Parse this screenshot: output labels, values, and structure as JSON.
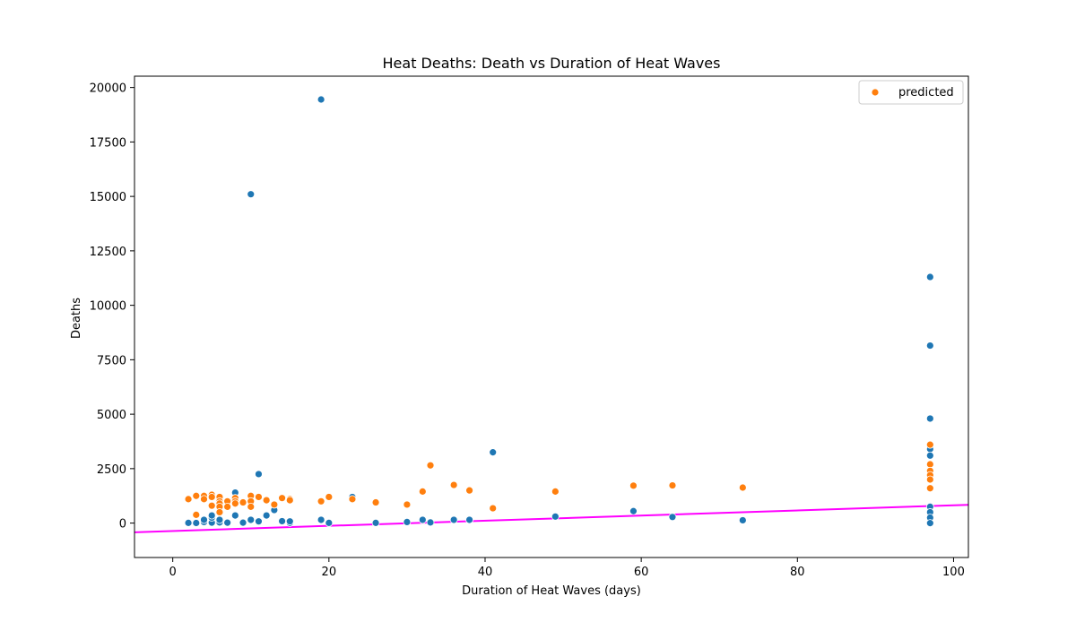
{
  "chart_data": {
    "type": "scatter",
    "title": "Heat Deaths: Death vs Duration of Heat Waves",
    "xlabel": "Duration of Heat Waves (days)",
    "ylabel": "Deaths",
    "xlim": [
      -4.9,
      101.9
    ],
    "ylim": [
      -1580,
      20520
    ],
    "xticks": [
      0,
      20,
      40,
      60,
      80,
      100
    ],
    "xtick_labels": [
      "0",
      "20",
      "40",
      "60",
      "80",
      "100"
    ],
    "yticks": [
      0,
      2500,
      5000,
      7500,
      10000,
      12500,
      15000,
      17500,
      20000
    ],
    "ytick_labels": [
      "0",
      "2500",
      "5000",
      "7500",
      "10000",
      "12500",
      "15000",
      "17500",
      "20000"
    ],
    "grid": false,
    "legend": {
      "position": "upper right",
      "entries": [
        "predicted"
      ]
    },
    "series": [
      {
        "color": "#1f77b4",
        "points": [
          {
            "x": 2,
            "y": 10
          },
          {
            "x": 3,
            "y": 5
          },
          {
            "x": 4,
            "y": 50
          },
          {
            "x": 4,
            "y": 150
          },
          {
            "x": 5,
            "y": 20
          },
          {
            "x": 5,
            "y": 250
          },
          {
            "x": 5,
            "y": 350
          },
          {
            "x": 6,
            "y": 30
          },
          {
            "x": 6,
            "y": 150
          },
          {
            "x": 6,
            "y": 1200
          },
          {
            "x": 7,
            "y": 20
          },
          {
            "x": 8,
            "y": 350
          },
          {
            "x": 8,
            "y": 1400
          },
          {
            "x": 9,
            "y": 20
          },
          {
            "x": 10,
            "y": 150
          },
          {
            "x": 10,
            "y": 15100
          },
          {
            "x": 11,
            "y": 80
          },
          {
            "x": 11,
            "y": 2250
          },
          {
            "x": 12,
            "y": 350
          },
          {
            "x": 13,
            "y": 600
          },
          {
            "x": 14,
            "y": 90
          },
          {
            "x": 15,
            "y": 10
          },
          {
            "x": 15,
            "y": 80
          },
          {
            "x": 19,
            "y": 150
          },
          {
            "x": 19,
            "y": 19450
          },
          {
            "x": 20,
            "y": 10
          },
          {
            "x": 23,
            "y": 1200
          },
          {
            "x": 26,
            "y": 10
          },
          {
            "x": 30,
            "y": 50
          },
          {
            "x": 32,
            "y": 150
          },
          {
            "x": 33,
            "y": 30
          },
          {
            "x": 36,
            "y": 150
          },
          {
            "x": 38,
            "y": 150
          },
          {
            "x": 41,
            "y": 3250
          },
          {
            "x": 49,
            "y": 300
          },
          {
            "x": 59,
            "y": 550
          },
          {
            "x": 64,
            "y": 280
          },
          {
            "x": 73,
            "y": 130
          },
          {
            "x": 97,
            "y": 11300
          },
          {
            "x": 97,
            "y": 8150
          },
          {
            "x": 97,
            "y": 4800
          },
          {
            "x": 97,
            "y": 3400
          },
          {
            "x": 97,
            "y": 3100
          },
          {
            "x": 97,
            "y": 750
          },
          {
            "x": 97,
            "y": 500
          },
          {
            "x": 97,
            "y": 250
          },
          {
            "x": 97,
            "y": 0
          }
        ]
      },
      {
        "name": "predicted",
        "color": "#ff7f0e",
        "points": [
          {
            "x": 2,
            "y": 1100
          },
          {
            "x": 3,
            "y": 1250
          },
          {
            "x": 3,
            "y": 380
          },
          {
            "x": 4,
            "y": 1250
          },
          {
            "x": 4,
            "y": 1100
          },
          {
            "x": 5,
            "y": 1300
          },
          {
            "x": 5,
            "y": 1200
          },
          {
            "x": 5,
            "y": 800
          },
          {
            "x": 6,
            "y": 1200
          },
          {
            "x": 6,
            "y": 1000
          },
          {
            "x": 6,
            "y": 900
          },
          {
            "x": 6,
            "y": 750
          },
          {
            "x": 6,
            "y": 500
          },
          {
            "x": 7,
            "y": 1000
          },
          {
            "x": 7,
            "y": 750
          },
          {
            "x": 8,
            "y": 1150
          },
          {
            "x": 8,
            "y": 1000
          },
          {
            "x": 8,
            "y": 900
          },
          {
            "x": 9,
            "y": 950
          },
          {
            "x": 10,
            "y": 1250
          },
          {
            "x": 10,
            "y": 1000
          },
          {
            "x": 10,
            "y": 750
          },
          {
            "x": 11,
            "y": 1200
          },
          {
            "x": 12,
            "y": 1050
          },
          {
            "x": 13,
            "y": 850
          },
          {
            "x": 14,
            "y": 1150
          },
          {
            "x": 15,
            "y": 1100
          },
          {
            "x": 15,
            "y": 1050
          },
          {
            "x": 19,
            "y": 1000
          },
          {
            "x": 20,
            "y": 1200
          },
          {
            "x": 23,
            "y": 1100
          },
          {
            "x": 26,
            "y": 950
          },
          {
            "x": 30,
            "y": 850
          },
          {
            "x": 32,
            "y": 1450
          },
          {
            "x": 33,
            "y": 2650
          },
          {
            "x": 36,
            "y": 1750
          },
          {
            "x": 38,
            "y": 1500
          },
          {
            "x": 41,
            "y": 680
          },
          {
            "x": 49,
            "y": 1450
          },
          {
            "x": 59,
            "y": 1720
          },
          {
            "x": 64,
            "y": 1730
          },
          {
            "x": 73,
            "y": 1630
          },
          {
            "x": 97,
            "y": 3600
          },
          {
            "x": 97,
            "y": 2700
          },
          {
            "x": 97,
            "y": 2400
          },
          {
            "x": 97,
            "y": 2200
          },
          {
            "x": 97,
            "y": 2000
          },
          {
            "x": 97,
            "y": 1600
          }
        ]
      }
    ],
    "regression_line": {
      "color": "#ff00ff",
      "points": [
        {
          "x": -4.9,
          "y": -420
        },
        {
          "x": 101.9,
          "y": 840
        }
      ]
    }
  }
}
